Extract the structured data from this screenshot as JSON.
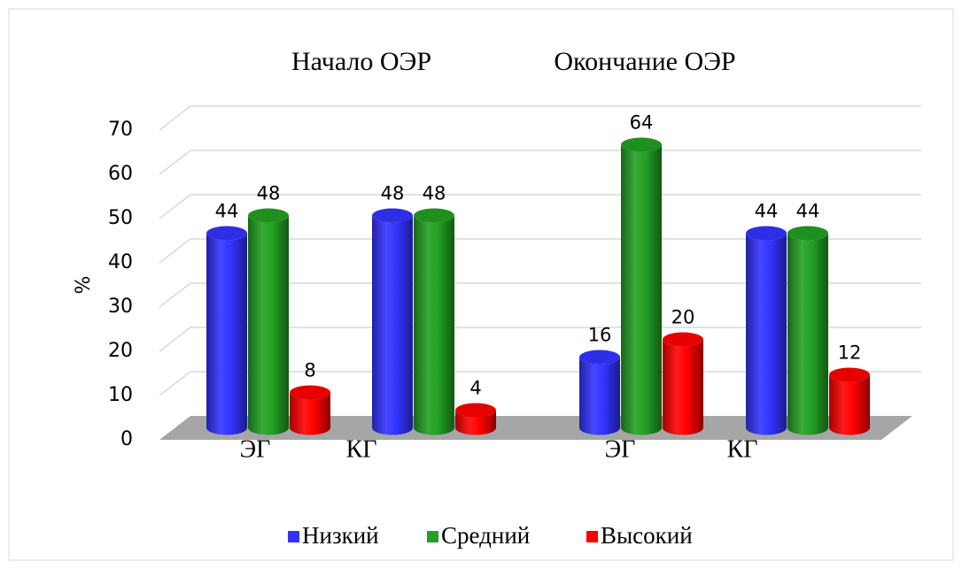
{
  "chart_data": {
    "type": "bar3d",
    "groups": [
      "Начало ОЭР",
      "Окончание ОЭР"
    ],
    "categories": [
      "ЭГ",
      "КГ",
      "ЭГ",
      "КГ"
    ],
    "y_label": "%",
    "series": [
      {
        "name": "Низкий",
        "color": "#3333ff",
        "values": [
          44,
          48,
          16,
          44
        ]
      },
      {
        "name": "Средний",
        "color": "#22a022",
        "values": [
          48,
          48,
          64,
          44
        ]
      },
      {
        "name": "Высокий",
        "color": "#ff0000",
        "values": [
          8,
          4,
          20,
          12
        ]
      }
    ],
    "ylim": [
      0,
      70
    ],
    "yticks": [
      0,
      10,
      20,
      30,
      40,
      50,
      60,
      70
    ],
    "grid": true,
    "legend": "bottom"
  }
}
